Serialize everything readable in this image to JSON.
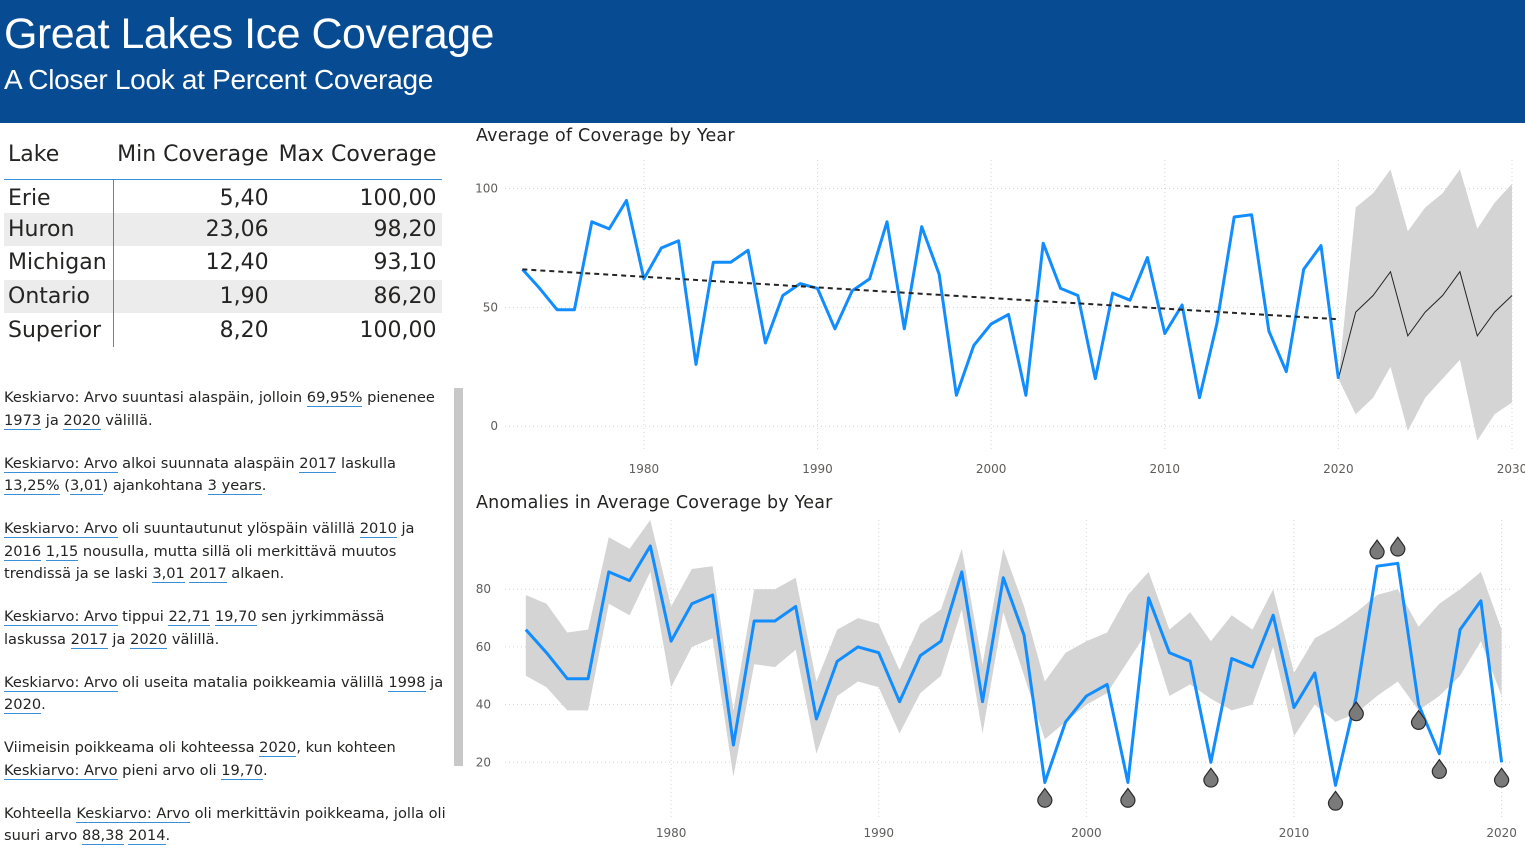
{
  "header": {
    "title": "Great Lakes Ice Coverage",
    "subtitle": "A Closer Look at Percent Coverage",
    "background": "#074C92"
  },
  "table": {
    "columns": [
      "Lake",
      "Min Coverage",
      "Max Coverage"
    ],
    "rows": [
      {
        "lake": "Erie",
        "min": "5,40",
        "max": "100,00"
      },
      {
        "lake": "Huron",
        "min": "23,06",
        "max": "98,20"
      },
      {
        "lake": "Michigan",
        "min": "12,40",
        "max": "93,10"
      },
      {
        "lake": "Ontario",
        "min": "1,90",
        "max": "86,20"
      },
      {
        "lake": "Superior",
        "min": "8,20",
        "max": "100,00"
      }
    ]
  },
  "narrative": [
    {
      "segments": [
        {
          "t": "Keskiarvo: Arvo suuntasi alaspäin, jolloin "
        },
        {
          "t": "69,95%",
          "hl": true
        },
        {
          "t": " pienenee "
        },
        {
          "t": "1973",
          "hl": true
        },
        {
          "t": " ja "
        },
        {
          "t": "2020",
          "hl": true
        },
        {
          "t": " välillä."
        }
      ]
    },
    {
      "segments": [
        {
          "t": "Keskiarvo: Arvo",
          "hl": true
        },
        {
          "t": " alkoi suunnata alaspäin "
        },
        {
          "t": "2017",
          "hl": true
        },
        {
          "t": " laskulla "
        },
        {
          "t": "13,25%",
          "hl": true
        },
        {
          "t": " ("
        },
        {
          "t": "3,01",
          "hl": true
        },
        {
          "t": ") ajankohtana "
        },
        {
          "t": "3 years",
          "hl": true
        },
        {
          "t": "."
        }
      ]
    },
    {
      "segments": [
        {
          "t": "Keskiarvo: Arvo",
          "hl": true
        },
        {
          "t": " oli suuntautunut ylöspäin välillä "
        },
        {
          "t": "2010",
          "hl": true
        },
        {
          "t": " ja "
        },
        {
          "t": "2016",
          "hl": true
        },
        {
          "t": " "
        },
        {
          "t": "1,15",
          "hl": true
        },
        {
          "t": " nousulla, mutta sillä oli merkittävä muutos trendissä ja se laski "
        },
        {
          "t": "3,01",
          "hl": true
        },
        {
          "t": " "
        },
        {
          "t": "2017",
          "hl": true
        },
        {
          "t": " alkaen."
        }
      ]
    },
    {
      "segments": [
        {
          "t": "Keskiarvo: Arvo",
          "hl": true
        },
        {
          "t": " tippui "
        },
        {
          "t": "22,71",
          "hl": true
        },
        {
          "t": " "
        },
        {
          "t": "19,70",
          "hl": true
        },
        {
          "t": " sen jyrkimmässä laskussa "
        },
        {
          "t": "2017",
          "hl": true
        },
        {
          "t": " ja "
        },
        {
          "t": "2020",
          "hl": true
        },
        {
          "t": " välillä."
        }
      ]
    },
    {
      "segments": [
        {
          "t": "Keskiarvo: Arvo",
          "hl": true
        },
        {
          "t": " oli useita matalia poikkeamia välillä "
        },
        {
          "t": "1998",
          "hl": true
        },
        {
          "t": " ja "
        },
        {
          "t": "2020",
          "hl": true
        },
        {
          "t": "."
        }
      ]
    },
    {
      "segments": [
        {
          "t": "Viimeisin poikkeama oli kohteessa "
        },
        {
          "t": "2020",
          "hl": true
        },
        {
          "t": ", kun kohteen "
        },
        {
          "t": "Keskiarvo: Arvo",
          "hl": true
        },
        {
          "t": " pieni arvo oli "
        },
        {
          "t": "19,70",
          "hl": true
        },
        {
          "t": "."
        }
      ]
    },
    {
      "segments": [
        {
          "t": "Kohteella "
        },
        {
          "t": "Keskiarvo: Arvo",
          "hl": true
        },
        {
          "t": " oli merkittävin poikkeama, jolla oli suuri arvo "
        },
        {
          "t": "88,38",
          "hl": true
        },
        {
          "t": " "
        },
        {
          "t": "2014",
          "hl": true
        },
        {
          "t": "."
        }
      ]
    }
  ],
  "chart_data": [
    {
      "type": "line",
      "title": "Average of Coverage by Year",
      "xlim": [
        1972,
        2030
      ],
      "ylim": [
        -10,
        112
      ],
      "xticks": [
        1980,
        1990,
        2000,
        2010,
        2020,
        2030
      ],
      "yticks": [
        0,
        50,
        100
      ],
      "grid": true,
      "colors": {
        "series": "#118DFF",
        "trend": "#252423",
        "forecast": "#252423",
        "band": "#d4d4d4"
      },
      "x": [
        1973,
        1974,
        1975,
        1976,
        1977,
        1978,
        1979,
        1980,
        1981,
        1982,
        1983,
        1984,
        1985,
        1986,
        1987,
        1988,
        1989,
        1990,
        1991,
        1992,
        1993,
        1994,
        1995,
        1996,
        1997,
        1998,
        1999,
        2000,
        2001,
        2002,
        2003,
        2004,
        2005,
        2006,
        2007,
        2008,
        2009,
        2010,
        2011,
        2012,
        2013,
        2014,
        2015,
        2016,
        2017,
        2018,
        2019,
        2020
      ],
      "values": [
        66,
        58,
        49,
        49,
        86,
        83,
        95,
        62,
        75,
        78,
        26,
        69,
        69,
        74,
        35,
        55,
        60,
        58,
        41,
        57,
        62,
        86,
        41,
        84,
        64,
        13,
        34,
        43,
        47,
        13,
        77,
        58,
        55,
        20,
        56,
        53,
        71,
        39,
        51,
        12,
        43,
        88,
        89,
        40,
        23,
        66,
        76,
        20
      ],
      "trend": {
        "x": [
          1973,
          2020
        ],
        "y": [
          66,
          45
        ]
      },
      "forecast": {
        "x": [
          2020,
          2021,
          2022,
          2023,
          2024,
          2025,
          2026,
          2027,
          2028,
          2029,
          2030
        ],
        "values": [
          20,
          48,
          55,
          65,
          38,
          48,
          55,
          65,
          38,
          48,
          55
        ],
        "lower": [
          20,
          5,
          12,
          25,
          -2,
          12,
          20,
          28,
          -6,
          5,
          10
        ],
        "upper": [
          20,
          92,
          98,
          108,
          82,
          92,
          98,
          108,
          83,
          94,
          102
        ]
      }
    },
    {
      "type": "line",
      "title": "Anomalies in Average Coverage by Year",
      "xlim": [
        1972,
        2020.5
      ],
      "ylim": [
        0,
        104
      ],
      "xticks": [
        1980,
        1990,
        2000,
        2010,
        2020
      ],
      "yticks": [
        20,
        40,
        60,
        80
      ],
      "grid": true,
      "colors": {
        "series": "#118DFF",
        "band": "#d4d4d4",
        "anomaly": "#7a7a7a"
      },
      "x": [
        1973,
        1974,
        1975,
        1976,
        1977,
        1978,
        1979,
        1980,
        1981,
        1982,
        1983,
        1984,
        1985,
        1986,
        1987,
        1988,
        1989,
        1990,
        1991,
        1992,
        1993,
        1994,
        1995,
        1996,
        1997,
        1998,
        1999,
        2000,
        2001,
        2002,
        2003,
        2004,
        2005,
        2006,
        2007,
        2008,
        2009,
        2010,
        2011,
        2012,
        2013,
        2014,
        2015,
        2016,
        2017,
        2018,
        2019,
        2020
      ],
      "values": [
        66,
        58,
        49,
        49,
        86,
        83,
        95,
        62,
        75,
        78,
        26,
        69,
        69,
        74,
        35,
        55,
        60,
        58,
        41,
        57,
        62,
        86,
        41,
        84,
        64,
        13,
        34,
        43,
        47,
        13,
        77,
        58,
        55,
        20,
        56,
        53,
        71,
        39,
        51,
        12,
        43,
        88,
        89,
        40,
        23,
        66,
        76,
        20
      ],
      "upper": [
        78,
        75,
        65,
        66,
        98,
        94,
        104,
        74,
        87,
        88,
        38,
        80,
        80,
        84,
        48,
        66,
        70,
        68,
        52,
        68,
        73,
        94,
        54,
        94,
        74,
        48,
        58,
        62,
        65,
        78,
        86,
        66,
        72,
        62,
        71,
        66,
        80,
        51,
        63,
        67,
        72,
        78,
        80,
        67,
        75,
        80,
        86,
        66
      ],
      "lower": [
        50,
        46,
        38,
        38,
        75,
        71,
        86,
        46,
        60,
        63,
        15,
        54,
        53,
        59,
        23,
        43,
        48,
        46,
        30,
        44,
        50,
        73,
        30,
        72,
        50,
        28,
        34,
        40,
        44,
        55,
        66,
        43,
        47,
        42,
        38,
        40,
        60,
        29,
        40,
        34,
        37,
        43,
        48,
        38,
        43,
        50,
        62,
        43
      ],
      "anomalies": [
        {
          "x": 1998,
          "y": 13,
          "side": "below"
        },
        {
          "x": 2002,
          "y": 13,
          "side": "below"
        },
        {
          "x": 2006,
          "y": 20,
          "side": "below"
        },
        {
          "x": 2012,
          "y": 12,
          "side": "below"
        },
        {
          "x": 2013,
          "y": 43,
          "side": "below"
        },
        {
          "x": 2014,
          "y": 88,
          "side": "above"
        },
        {
          "x": 2015,
          "y": 89,
          "side": "above"
        },
        {
          "x": 2016,
          "y": 40,
          "side": "below"
        },
        {
          "x": 2017,
          "y": 23,
          "side": "below"
        },
        {
          "x": 2020,
          "y": 20,
          "side": "below"
        }
      ]
    }
  ]
}
